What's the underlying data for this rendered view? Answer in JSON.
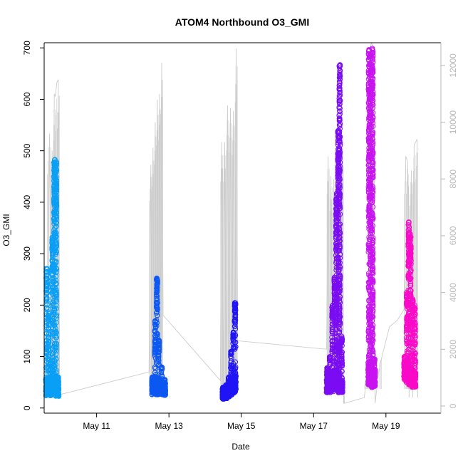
{
  "chart_data": {
    "type": "scatter",
    "title": "ATOM4 Northbound O3_GMI",
    "xlabel": "Date",
    "ylabel": "O3_GMI",
    "x_unit": "day",
    "xlim": [
      9.55,
      20.52
    ],
    "ylim": [
      -10,
      710
    ],
    "y2lim": [
      -250,
      12800
    ],
    "x_ticks": [
      {
        "x": 11,
        "label": "May 11"
      },
      {
        "x": 13,
        "label": "May 13"
      },
      {
        "x": 15,
        "label": "May 15"
      },
      {
        "x": 17,
        "label": "May 17"
      },
      {
        "x": 19,
        "label": "May 19"
      }
    ],
    "y_ticks": [
      0,
      100,
      200,
      300,
      400,
      500,
      600,
      700
    ],
    "y2_ticks": [
      0,
      2000,
      4000,
      6000,
      8000,
      10000,
      12000
    ],
    "y2_color": "#b8b8b8",
    "grid": false,
    "legend": "none",
    "series": [
      {
        "color": "#0a9ff5",
        "clusters": [
          {
            "x": 9.62,
            "base_low": 24,
            "base_high": 58,
            "peak": 272,
            "peak_from": 0.48
          },
          {
            "x": 9.67,
            "base_low": 26,
            "base_high": 60,
            "peak": 195,
            "peak_from": 0.4
          },
          {
            "x": 9.72,
            "base_low": 24,
            "base_high": 52,
            "peak": 90,
            "peak_from": 0.3
          },
          {
            "x": 9.78,
            "base_low": 28,
            "base_high": 58,
            "peak": 335,
            "peak_from": 0.6
          },
          {
            "x": 9.83,
            "base_low": 30,
            "base_high": 60,
            "peak": 483,
            "peak_from": 0.6
          },
          {
            "x": 9.88,
            "base_low": 22,
            "base_high": 56,
            "peak": 480,
            "peak_from": 0.55
          },
          {
            "x": 9.93,
            "base_low": 22,
            "base_high": 55,
            "peak": 60,
            "peak_from": 0.4
          }
        ]
      },
      {
        "color": "#0d58f2",
        "clusters": [
          {
            "x": 12.55,
            "base_low": 26,
            "base_high": 58,
            "peak": 60,
            "peak_from": 0.4
          },
          {
            "x": 12.62,
            "base_low": 26,
            "base_high": 60,
            "peak": 170,
            "peak_from": 0.5
          },
          {
            "x": 12.67,
            "base_low": 26,
            "base_high": 60,
            "peak": 255,
            "peak_from": 0.6
          },
          {
            "x": 12.72,
            "base_low": 26,
            "base_high": 58,
            "peak": 135,
            "peak_from": 0.5
          },
          {
            "x": 12.8,
            "base_low": 26,
            "base_high": 55,
            "peak": 80,
            "peak_from": 0.4
          },
          {
            "x": 12.88,
            "base_low": 25,
            "base_high": 50,
            "peak": 55,
            "peak_from": 0.4
          }
        ]
      },
      {
        "color": "#2015f5",
        "clusters": [
          {
            "x": 14.5,
            "base_low": 17,
            "base_high": 38,
            "peak": 40,
            "peak_from": 0.4
          },
          {
            "x": 14.58,
            "base_low": 18,
            "base_high": 40,
            "peak": 45,
            "peak_from": 0.4
          },
          {
            "x": 14.65,
            "base_low": 22,
            "base_high": 45,
            "peak": 60,
            "peak_from": 0.4
          },
          {
            "x": 14.72,
            "base_low": 25,
            "base_high": 58,
            "peak": 110,
            "peak_from": 0.55
          },
          {
            "x": 14.78,
            "base_low": 28,
            "base_high": 60,
            "peak": 148,
            "peak_from": 0.6
          },
          {
            "x": 14.83,
            "base_low": 30,
            "base_high": 62,
            "peak": 205,
            "peak_from": 0.6
          }
        ]
      },
      {
        "color": "#7a0cf2",
        "clusters": [
          {
            "x": 17.38,
            "base_low": 30,
            "base_high": 75,
            "peak": 78,
            "peak_from": 0.4
          },
          {
            "x": 17.45,
            "base_low": 30,
            "base_high": 72,
            "peak": 100,
            "peak_from": 0.4
          },
          {
            "x": 17.52,
            "base_low": 32,
            "base_high": 70,
            "peak": 200,
            "peak_from": 0.5
          },
          {
            "x": 17.58,
            "base_low": 35,
            "base_high": 75,
            "peak": 255,
            "peak_from": 0.6
          },
          {
            "x": 17.63,
            "base_low": 40,
            "base_high": 80,
            "peak": 420,
            "peak_from": 0.55
          },
          {
            "x": 17.68,
            "base_low": 30,
            "base_high": 70,
            "peak": 540,
            "peak_from": 0.55
          },
          {
            "x": 17.72,
            "base_low": 30,
            "base_high": 60,
            "peak": 668,
            "peak_from": 0.55
          },
          {
            "x": 17.78,
            "base_low": 30,
            "base_high": 55,
            "peak": 140,
            "peak_from": 0.4
          }
        ]
      },
      {
        "color": "#c814f0",
        "clusters": [
          {
            "x": 18.53,
            "base_low": 45,
            "base_high": 90,
            "peak": 698,
            "peak_from": 0.4
          },
          {
            "x": 18.58,
            "base_low": 45,
            "base_high": 90,
            "peak": 690,
            "peak_from": 0.45
          },
          {
            "x": 18.63,
            "base_low": 40,
            "base_high": 80,
            "peak": 700,
            "peak_from": 0.4
          },
          {
            "x": 18.68,
            "base_low": 40,
            "base_high": 75,
            "peak": 95,
            "peak_from": 0.4
          }
        ]
      },
      {
        "color": "#fa0ac8",
        "clusters": [
          {
            "x": 19.52,
            "base_low": 55,
            "base_high": 90,
            "peak": 100,
            "peak_from": 0.4
          },
          {
            "x": 19.58,
            "base_low": 50,
            "base_high": 90,
            "peak": 225,
            "peak_from": 0.5
          },
          {
            "x": 19.63,
            "base_low": 45,
            "base_high": 80,
            "peak": 362,
            "peak_from": 0.55
          },
          {
            "x": 19.68,
            "base_low": 45,
            "base_high": 80,
            "peak": 340,
            "peak_from": 0.5
          },
          {
            "x": 19.74,
            "base_low": 40,
            "base_high": 75,
            "peak": 215,
            "peak_from": 0.45
          },
          {
            "x": 19.8,
            "base_low": 40,
            "base_high": 70,
            "peak": 200,
            "peak_from": 0.45
          }
        ]
      }
    ],
    "secondary_series": {
      "name": "",
      "color": "#cccccc",
      "points": [
        [
          9.55,
          1200
        ],
        [
          9.62,
          1100
        ],
        [
          9.7,
          9600
        ],
        [
          9.74,
          600
        ],
        [
          9.77,
          9000
        ],
        [
          9.8,
          700
        ],
        [
          9.83,
          11000
        ],
        [
          9.86,
          10900
        ],
        [
          9.9,
          11400
        ],
        [
          9.94,
          11500
        ],
        [
          9.98,
          400
        ],
        [
          12.45,
          1200
        ],
        [
          12.5,
          8500
        ],
        [
          12.53,
          600
        ],
        [
          12.56,
          9100
        ],
        [
          12.59,
          700
        ],
        [
          12.62,
          10000
        ],
        [
          12.65,
          800
        ],
        [
          12.68,
          10800
        ],
        [
          12.71,
          900
        ],
        [
          12.74,
          11000
        ],
        [
          12.77,
          1200
        ],
        [
          12.8,
          12100
        ],
        [
          12.84,
          3200
        ],
        [
          14.42,
          900
        ],
        [
          14.46,
          9300
        ],
        [
          14.5,
          500
        ],
        [
          14.54,
          9300
        ],
        [
          14.58,
          600
        ],
        [
          14.62,
          10600
        ],
        [
          14.66,
          700
        ],
        [
          14.7,
          10500
        ],
        [
          14.74,
          900
        ],
        [
          14.78,
          10400
        ],
        [
          14.82,
          700
        ],
        [
          14.86,
          12600
        ],
        [
          14.9,
          2300
        ],
        [
          17.36,
          2000
        ],
        [
          17.4,
          8800
        ],
        [
          17.44,
          1000
        ],
        [
          17.48,
          8100
        ],
        [
          17.52,
          900
        ],
        [
          17.56,
          8000
        ],
        [
          17.6,
          1200
        ],
        [
          17.64,
          8200
        ],
        [
          17.68,
          1100
        ],
        [
          17.72,
          7500
        ],
        [
          17.76,
          1800
        ],
        [
          17.8,
          8900
        ],
        [
          17.83,
          100
        ],
        [
          17.86,
          100
        ],
        [
          18.4,
          300
        ],
        [
          18.45,
          900
        ],
        [
          18.5,
          800
        ],
        [
          18.55,
          12600
        ],
        [
          18.6,
          12800
        ],
        [
          18.65,
          12600
        ],
        [
          18.7,
          100
        ],
        [
          18.8,
          1200
        ],
        [
          18.9,
          1800
        ],
        [
          19.1,
          2800
        ],
        [
          19.3,
          3000
        ],
        [
          19.5,
          3400
        ],
        [
          19.55,
          8800
        ],
        [
          19.6,
          8600
        ],
        [
          19.64,
          300
        ],
        [
          19.7,
          8300
        ],
        [
          19.74,
          300
        ],
        [
          19.78,
          9200
        ],
        [
          19.82,
          9300
        ],
        [
          19.86,
          9400
        ],
        [
          19.88,
          300
        ]
      ]
    }
  }
}
